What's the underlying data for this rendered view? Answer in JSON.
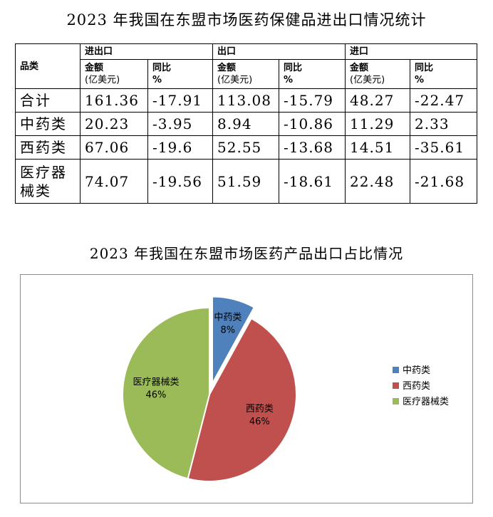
{
  "table_title": "2023 年我国在东盟市场医药保健品进出口情况统计",
  "table": {
    "category_header": "品类",
    "groups": [
      "进出口",
      "出口",
      "进口"
    ],
    "amount_header": "金额",
    "amount_unit": "(亿美元)",
    "yoy_header": "同比",
    "yoy_unit": "%",
    "rows": [
      {
        "category": "合计",
        "values": [
          "161.36",
          "-17.91",
          "113.08",
          "-15.79",
          "48.27",
          "-22.47"
        ]
      },
      {
        "category": "中药类",
        "values": [
          "20.23",
          "-3.95",
          "8.94",
          "-10.86",
          "11.29",
          "2.33"
        ]
      },
      {
        "category": "西药类",
        "values": [
          "67.06",
          "-19.6",
          "52.55",
          "-13.68",
          "14.51",
          "-35.61"
        ]
      },
      {
        "category": "医疗器械类",
        "values": [
          "74.07",
          "-19.56",
          "51.59",
          "-18.61",
          "22.48",
          "-21.68"
        ]
      }
    ]
  },
  "chart_title": "2023 年我国在东盟市场医药产品出口占比情况",
  "chart_data": {
    "type": "pie",
    "title": "2023 年我国在东盟市场医药产品出口占比情况",
    "categories": [
      "中药类",
      "西药类",
      "医疗器械类"
    ],
    "values": [
      8,
      46,
      46
    ],
    "labels": [
      "8%",
      "46%",
      "46%"
    ],
    "colors": [
      "#4f81bd",
      "#c0504d",
      "#9bbb59"
    ],
    "exploded": [
      "中药类"
    ],
    "legend": {
      "position": "right",
      "entries": [
        "中药类",
        "西药类",
        "医疗器械类"
      ]
    }
  }
}
